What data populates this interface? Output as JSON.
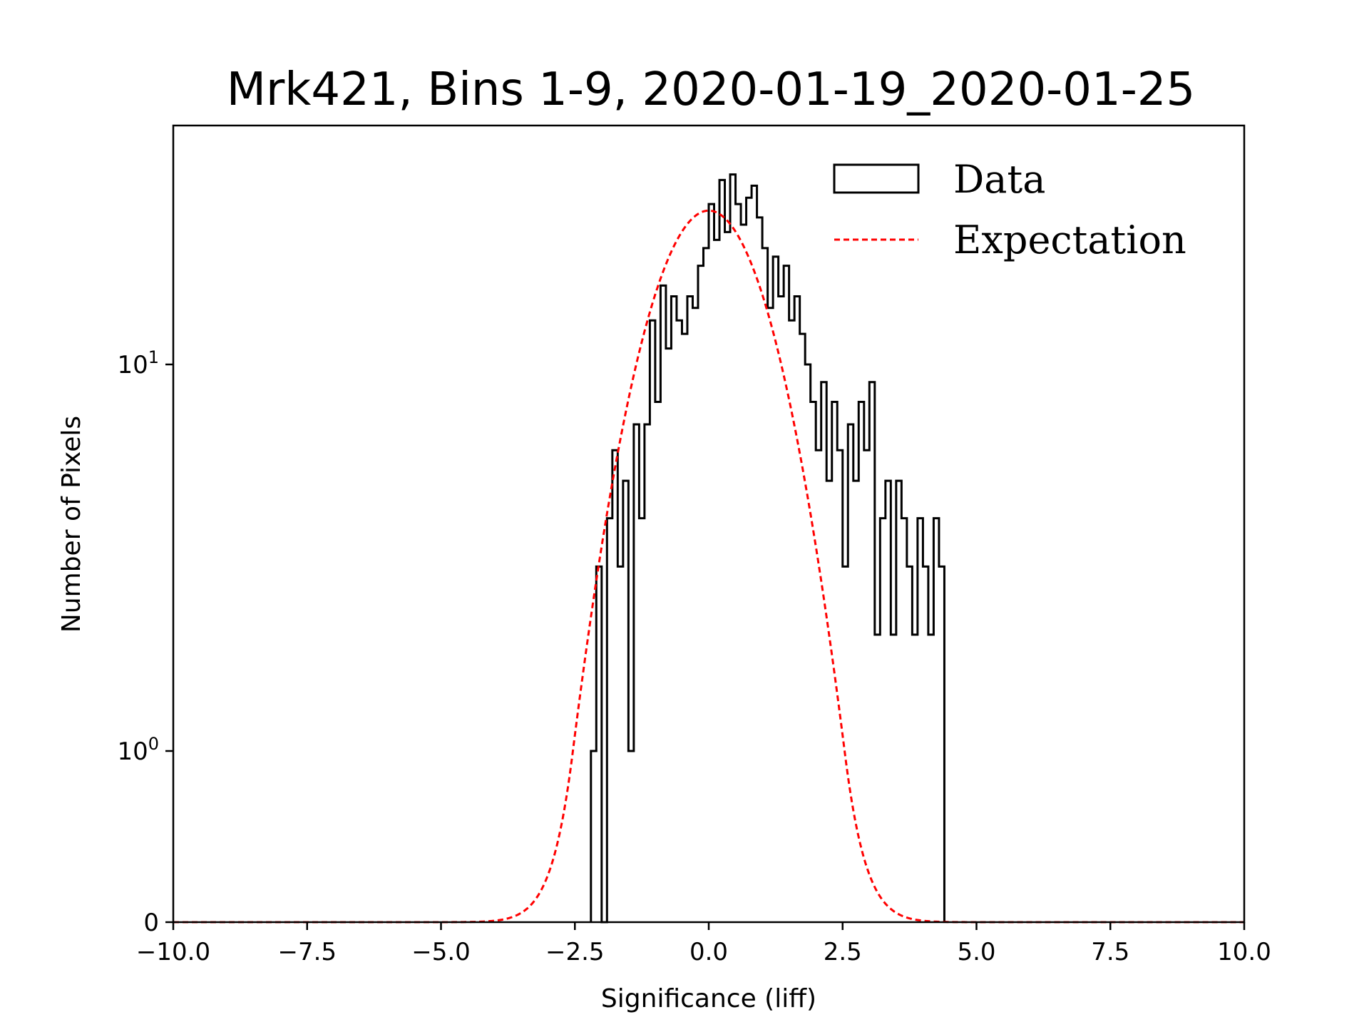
{
  "chart_data": {
    "type": "histogram",
    "title": "Mrk421, Bins 1-9, 2020-01-19_2020-01-25",
    "xlabel": "Significance (liff)",
    "ylabel": "Number of Pixels",
    "xlim": [
      -10,
      10
    ],
    "yscale": "symlog",
    "ylim": [
      0,
      40
    ],
    "x_ticks": [
      -10.0,
      -7.5,
      -5.0,
      -2.5,
      0.0,
      2.5,
      5.0,
      7.5,
      10.0
    ],
    "x_tick_labels": [
      "−10.0",
      "−7.5",
      "−5.0",
      "−2.5",
      "0.0",
      "2.5",
      "5.0",
      "7.5",
      "10.0"
    ],
    "y_ticks": [
      {
        "value": 0,
        "base": "0",
        "exp": ""
      },
      {
        "value": 1,
        "base": "10",
        "exp": "0"
      },
      {
        "value": 10,
        "base": "10",
        "exp": "1"
      }
    ],
    "legend": {
      "position": "top-right",
      "entries": [
        "Data",
        "Expectation"
      ]
    },
    "series": [
      {
        "name": "Data",
        "style": "step",
        "color": "#000000",
        "bin_width": 0.1,
        "bins": [
          [
            -2.2,
            1
          ],
          [
            -2.1,
            3
          ],
          [
            -2.0,
            0
          ],
          [
            -1.9,
            4
          ],
          [
            -1.8,
            6
          ],
          [
            -1.7,
            3
          ],
          [
            -1.6,
            5
          ],
          [
            -1.5,
            1
          ],
          [
            -1.4,
            7
          ],
          [
            -1.3,
            4
          ],
          [
            -1.2,
            7
          ],
          [
            -1.1,
            13
          ],
          [
            -1.0,
            8
          ],
          [
            -0.9,
            16
          ],
          [
            -0.8,
            11
          ],
          [
            -0.7,
            15
          ],
          [
            -0.6,
            13
          ],
          [
            -0.5,
            12
          ],
          [
            -0.4,
            15
          ],
          [
            -0.3,
            14
          ],
          [
            -0.2,
            18
          ],
          [
            -0.1,
            20
          ],
          [
            0.0,
            26
          ],
          [
            0.1,
            21
          ],
          [
            0.2,
            30
          ],
          [
            0.3,
            22
          ],
          [
            0.4,
            31
          ],
          [
            0.5,
            26
          ],
          [
            0.6,
            23
          ],
          [
            0.7,
            27
          ],
          [
            0.8,
            29
          ],
          [
            0.9,
            24
          ],
          [
            1.0,
            20
          ],
          [
            1.1,
            14
          ],
          [
            1.2,
            19
          ],
          [
            1.3,
            15
          ],
          [
            1.4,
            18
          ],
          [
            1.5,
            13
          ],
          [
            1.6,
            15
          ],
          [
            1.7,
            12
          ],
          [
            1.8,
            10
          ],
          [
            1.9,
            8
          ],
          [
            2.0,
            6
          ],
          [
            2.1,
            9
          ],
          [
            2.2,
            5
          ],
          [
            2.3,
            8
          ],
          [
            2.4,
            6
          ],
          [
            2.5,
            3
          ],
          [
            2.6,
            7
          ],
          [
            2.7,
            5
          ],
          [
            2.8,
            8
          ],
          [
            2.9,
            6
          ],
          [
            3.0,
            9
          ],
          [
            3.1,
            2
          ],
          [
            3.2,
            4
          ],
          [
            3.3,
            5
          ],
          [
            3.4,
            2
          ],
          [
            3.5,
            5
          ],
          [
            3.6,
            4
          ],
          [
            3.7,
            3
          ],
          [
            3.8,
            2
          ],
          [
            3.9,
            4
          ],
          [
            4.0,
            3
          ],
          [
            4.1,
            2
          ],
          [
            4.2,
            4
          ],
          [
            4.3,
            3
          ]
        ]
      },
      {
        "name": "Expectation",
        "style": "dashed",
        "color": "#ff0000",
        "peak_amplitude": 25,
        "mean": 0.0,
        "sigma": 1.0
      }
    ]
  }
}
